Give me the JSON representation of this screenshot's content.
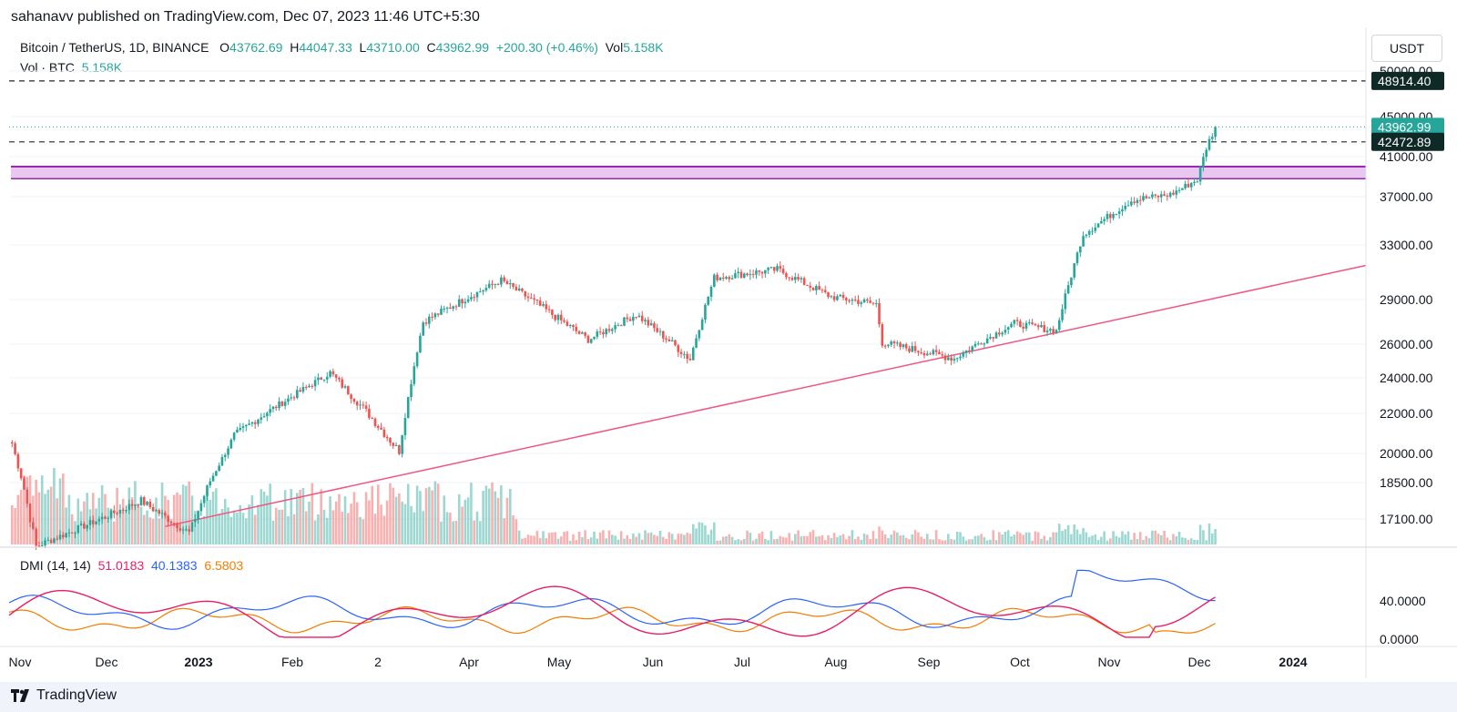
{
  "header": {
    "text": "sahanavv published on TradingView.com, Dec 07, 2023 11:46 UTC+5:30"
  },
  "legend": {
    "symbol": "Bitcoin / TetherUS, 1D, BINANCE",
    "o_label": "O",
    "o_value": "43762.69",
    "h_label": "H",
    "h_value": "44047.33",
    "l_label": "L",
    "l_value": "43710.00",
    "c_label": "C",
    "c_value": "43962.99",
    "change": "+200.30 (+0.46%)",
    "vol_label": "Vol",
    "vol_value": "5.158K",
    "vol_series_label": "Vol · BTC",
    "vol_series_value": "5.158K"
  },
  "dmi": {
    "label": "DMI (14, 14)",
    "plus": "51.0183",
    "minus": "40.1383",
    "adx": "6.5803"
  },
  "currency_button": "USDT",
  "footer": {
    "brand": "TradingView"
  },
  "colors": {
    "up": "#26a69a",
    "down": "#ef5350",
    "trendline": "#f2557f",
    "zone_fill": "#e9c8f0",
    "zone_border": "#9c27b0",
    "dmi_plus": "#e91e63",
    "dmi_minus": "#2962ff",
    "dmi_adx": "#f57c00"
  },
  "chart_data": {
    "type": "candlestick",
    "price_axis_ticks": [
      50000,
      45000,
      41000,
      37000,
      33000,
      29000,
      26000,
      24000,
      22000,
      20000,
      18500,
      17100
    ],
    "price_axis_labels": [
      "50000.00",
      "45000.00",
      "41000.00",
      "37000.00",
      "33000.00",
      "29000.00",
      "26000.00",
      "24000.00",
      "22000.00",
      "20000.00",
      "18500.00",
      "17100.00"
    ],
    "dmi_axis_labels": [
      "40.0000",
      "0.0000"
    ],
    "dmi_axis_ticks": [
      40,
      0
    ],
    "time_labels": [
      "Nov",
      "Dec",
      "2023",
      "Feb",
      "2",
      "Apr",
      "May",
      "Jun",
      "Jul",
      "Aug",
      "Sep",
      "Oct",
      "Nov",
      "Dec",
      "2024"
    ],
    "price_tags": [
      {
        "label": "48914.40",
        "value": 48914.4,
        "style": "dark"
      },
      {
        "label": "43962.99",
        "value": 43962.99,
        "style": "teal"
      },
      {
        "label": "42472.89",
        "value": 42472.89,
        "style": "dark"
      }
    ],
    "horizontal_lines": [
      48914.4,
      42472.89
    ],
    "last_price": 43962.99,
    "resistance_zone": [
      38800,
      40000
    ],
    "trendline": {
      "from": {
        "date": "2022-12-22",
        "price": 16800
      },
      "to": {
        "date": "2024-01-19",
        "price": 31500
      }
    },
    "key_points": [
      {
        "date": "2022-11-01",
        "price": 20500
      },
      {
        "date": "2022-11-09",
        "price": 16000
      },
      {
        "date": "2022-12-14",
        "price": 17800
      },
      {
        "date": "2022-12-30",
        "price": 16550
      },
      {
        "date": "2023-01-14",
        "price": 20900
      },
      {
        "date": "2023-02-15",
        "price": 24300
      },
      {
        "date": "2023-03-10",
        "price": 20100
      },
      {
        "date": "2023-03-18",
        "price": 27500
      },
      {
        "date": "2023-04-13",
        "price": 30400
      },
      {
        "date": "2023-05-12",
        "price": 26300
      },
      {
        "date": "2023-05-28",
        "price": 28000
      },
      {
        "date": "2023-06-15",
        "price": 25100
      },
      {
        "date": "2023-06-23",
        "price": 30600
      },
      {
        "date": "2023-07-14",
        "price": 31200
      },
      {
        "date": "2023-08-01",
        "price": 29200
      },
      {
        "date": "2023-08-16",
        "price": 28700
      },
      {
        "date": "2023-08-18",
        "price": 26100
      },
      {
        "date": "2023-09-11",
        "price": 25150
      },
      {
        "date": "2023-10-01",
        "price": 27400
      },
      {
        "date": "2023-10-15",
        "price": 26900
      },
      {
        "date": "2023-10-24",
        "price": 33900
      },
      {
        "date": "2023-11-09",
        "price": 36700
      },
      {
        "date": "2023-11-22",
        "price": 37200
      },
      {
        "date": "2023-12-01",
        "price": 38700
      },
      {
        "date": "2023-12-04",
        "price": 41900
      },
      {
        "date": "2023-12-07",
        "price": 43963
      }
    ]
  }
}
